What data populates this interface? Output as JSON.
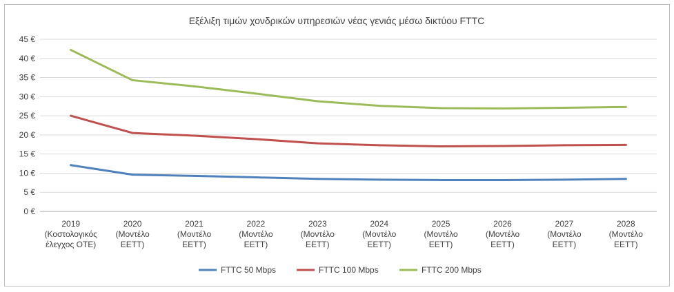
{
  "chart_data": {
    "type": "line",
    "title": "Εξέλιξη τιμών χονδρικών υπηρεσιών νέας γενιάς μέσω δικτύου FTTC",
    "xlabel": "",
    "ylabel": "",
    "categories": [
      [
        "2019",
        "(Κοστολογικός",
        "έλεγχος ΟΤΕ)"
      ],
      [
        "2020",
        "(Μοντέλο",
        "ΕΕΤΤ)"
      ],
      [
        "2021",
        "(Μοντέλο",
        "ΕΕΤΤ)"
      ],
      [
        "2022",
        "(Μοντέλο",
        "ΕΕΤΤ)"
      ],
      [
        "2023",
        "(Μοντέλο",
        "ΕΕΤΤ)"
      ],
      [
        "2024",
        "(Μοντέλο",
        "ΕΕΤΤ)"
      ],
      [
        "2025",
        "(Μοντέλο",
        "ΕΕΤΤ)"
      ],
      [
        "2026",
        "(Μοντέλο",
        "ΕΕΤΤ)"
      ],
      [
        "2027",
        "(Μοντέλο",
        "ΕΕΤΤ)"
      ],
      [
        "2028",
        "(Μοντέλο",
        "ΕΕΤΤ)"
      ]
    ],
    "ylim": [
      0,
      45
    ],
    "yticks": [
      0,
      5,
      10,
      15,
      20,
      25,
      30,
      35,
      40,
      45
    ],
    "ytick_labels": [
      "0 €",
      "5 €",
      "10 €",
      "15 €",
      "20 €",
      "25 €",
      "30 €",
      "35 €",
      "40 €",
      "45 €"
    ],
    "grid": true,
    "legend_position": "bottom",
    "series": [
      {
        "name": "FTTC 50 Mbps",
        "color": "#4f81bd",
        "values": [
          12.1,
          9.6,
          9.3,
          8.9,
          8.5,
          8.3,
          8.2,
          8.2,
          8.3,
          8.5
        ]
      },
      {
        "name": "FTTC 100 Mbps",
        "color": "#c0504d",
        "values": [
          25.0,
          20.5,
          19.8,
          18.9,
          17.8,
          17.3,
          17.0,
          17.1,
          17.3,
          17.4
        ]
      },
      {
        "name": "FTTC 200 Mbps",
        "color": "#9bbb59",
        "values": [
          42.2,
          34.3,
          32.7,
          30.8,
          28.8,
          27.6,
          27.0,
          26.9,
          27.1,
          27.3
        ]
      }
    ]
  }
}
